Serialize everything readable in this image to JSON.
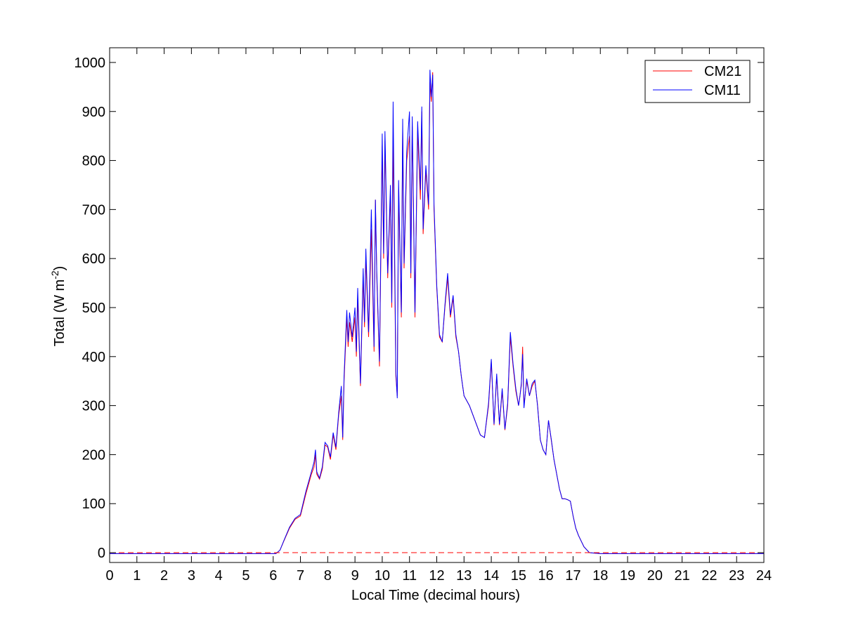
{
  "chart_data": {
    "type": "line",
    "title": "",
    "xlabel": "Local Time (decimal hours)",
    "ylabel": "Total (W m",
    "ylabel_superscript": "-2",
    "ylabel_suffix": ")",
    "xlim": [
      0,
      24
    ],
    "ylim": [
      -20,
      1030
    ],
    "xticks": [
      0,
      1,
      2,
      3,
      4,
      5,
      6,
      7,
      8,
      9,
      10,
      11,
      12,
      13,
      14,
      15,
      16,
      17,
      18,
      19,
      20,
      21,
      22,
      23,
      24
    ],
    "yticks": [
      0,
      100,
      200,
      300,
      400,
      500,
      600,
      700,
      800,
      900,
      1000
    ],
    "grid": false,
    "legend_position": "top-right",
    "series": [
      {
        "name": "CM21",
        "color": "#ff0000",
        "x": [
          0,
          6.1,
          6.25,
          6.4,
          6.6,
          6.8,
          7.0,
          7.2,
          7.4,
          7.5,
          7.55,
          7.6,
          7.7,
          7.8,
          7.9,
          8.0,
          8.1,
          8.2,
          8.3,
          8.4,
          8.5,
          8.55,
          8.6,
          8.7,
          8.75,
          8.8,
          8.9,
          9.0,
          9.05,
          9.1,
          9.2,
          9.3,
          9.35,
          9.4,
          9.5,
          9.6,
          9.7,
          9.75,
          9.8,
          9.9,
          10.0,
          10.05,
          10.1,
          10.2,
          10.3,
          10.35,
          10.4,
          10.5,
          10.55,
          10.6,
          10.7,
          10.75,
          10.8,
          10.9,
          11.0,
          11.05,
          11.1,
          11.2,
          11.3,
          11.4,
          11.45,
          11.5,
          11.6,
          11.7,
          11.75,
          11.8,
          11.85,
          11.9,
          12.0,
          12.1,
          12.2,
          12.3,
          12.4,
          12.5,
          12.6,
          12.7,
          12.8,
          12.9,
          13.0,
          13.2,
          13.4,
          13.6,
          13.75,
          13.9,
          14.0,
          14.1,
          14.2,
          14.3,
          14.4,
          14.5,
          14.6,
          14.7,
          14.8,
          14.9,
          15.0,
          15.05,
          15.1,
          15.15,
          15.2,
          15.3,
          15.4,
          15.5,
          15.6,
          15.7,
          15.8,
          15.9,
          16.0,
          16.1,
          16.2,
          16.3,
          16.4,
          16.5,
          16.6,
          16.7,
          16.8,
          16.9,
          17.0,
          17.1,
          17.2,
          17.4,
          17.6,
          17.8,
          18.0,
          24
        ],
        "y": [
          -2,
          -2,
          5,
          25,
          50,
          68,
          75,
          120,
          160,
          175,
          200,
          160,
          150,
          170,
          220,
          215,
          190,
          240,
          210,
          280,
          320,
          230,
          350,
          480,
          420,
          470,
          430,
          480,
          400,
          520,
          340,
          560,
          460,
          600,
          440,
          660,
          410,
          720,
          560,
          380,
          830,
          600,
          840,
          560,
          730,
          500,
          850,
          360,
          320,
          740,
          480,
          860,
          580,
          800,
          850,
          560,
          870,
          480,
          860,
          720,
          900,
          650,
          780,
          700,
          960,
          920,
          980,
          700,
          540,
          440,
          430,
          500,
          560,
          480,
          520,
          440,
          410,
          360,
          320,
          300,
          270,
          240,
          235,
          300,
          390,
          260,
          360,
          260,
          330,
          250,
          300,
          440,
          380,
          330,
          300,
          320,
          340,
          420,
          300,
          350,
          320,
          340,
          350,
          300,
          230,
          210,
          200,
          270,
          230,
          190,
          160,
          130,
          110,
          110,
          108,
          105,
          75,
          50,
          35,
          12,
          0,
          -1,
          -2,
          -2
        ]
      },
      {
        "name": "CM11",
        "color": "#0000ff",
        "x": [
          0,
          6.1,
          6.25,
          6.4,
          6.6,
          6.8,
          7.0,
          7.2,
          7.4,
          7.5,
          7.55,
          7.6,
          7.7,
          7.8,
          7.9,
          8.0,
          8.1,
          8.2,
          8.3,
          8.4,
          8.5,
          8.55,
          8.6,
          8.7,
          8.75,
          8.8,
          8.9,
          9.0,
          9.05,
          9.1,
          9.2,
          9.3,
          9.35,
          9.4,
          9.5,
          9.6,
          9.7,
          9.75,
          9.8,
          9.9,
          10.0,
          10.05,
          10.1,
          10.2,
          10.3,
          10.35,
          10.4,
          10.5,
          10.55,
          10.6,
          10.7,
          10.75,
          10.8,
          10.9,
          11.0,
          11.05,
          11.1,
          11.2,
          11.3,
          11.4,
          11.45,
          11.5,
          11.6,
          11.7,
          11.75,
          11.8,
          11.85,
          11.9,
          12.0,
          12.1,
          12.2,
          12.3,
          12.4,
          12.5,
          12.6,
          12.7,
          12.8,
          12.9,
          13.0,
          13.2,
          13.4,
          13.6,
          13.75,
          13.9,
          14.0,
          14.1,
          14.2,
          14.3,
          14.4,
          14.5,
          14.6,
          14.7,
          14.8,
          14.9,
          15.0,
          15.05,
          15.1,
          15.15,
          15.2,
          15.3,
          15.4,
          15.5,
          15.6,
          15.7,
          15.8,
          15.9,
          16.0,
          16.1,
          16.2,
          16.3,
          16.4,
          16.5,
          16.6,
          16.7,
          16.8,
          16.9,
          17.0,
          17.1,
          17.2,
          17.4,
          17.6,
          17.8,
          18.0,
          24
        ],
        "y": [
          -2,
          -2,
          5,
          26,
          52,
          70,
          78,
          125,
          165,
          185,
          210,
          165,
          152,
          175,
          225,
          218,
          195,
          245,
          215,
          285,
          340,
          235,
          360,
          495,
          430,
          490,
          440,
          500,
          410,
          540,
          345,
          580,
          470,
          620,
          450,
          700,
          420,
          720,
          570,
          390,
          855,
          610,
          860,
          570,
          750,
          510,
          920,
          370,
          315,
          760,
          490,
          885,
          590,
          820,
          900,
          570,
          890,
          490,
          880,
          740,
          910,
          660,
          790,
          710,
          985,
          930,
          975,
          710,
          545,
          445,
          430,
          505,
          570,
          485,
          525,
          445,
          410,
          360,
          320,
          300,
          270,
          240,
          235,
          305,
          395,
          262,
          365,
          262,
          335,
          252,
          305,
          450,
          385,
          335,
          300,
          318,
          345,
          405,
          295,
          355,
          320,
          345,
          352,
          298,
          230,
          210,
          200,
          270,
          232,
          190,
          160,
          130,
          110,
          110,
          108,
          105,
          75,
          50,
          35,
          12,
          0,
          -1,
          -2,
          -2
        ]
      }
    ],
    "reference_line": {
      "y": 0,
      "color": "#ff0000",
      "style": "dashed"
    }
  }
}
